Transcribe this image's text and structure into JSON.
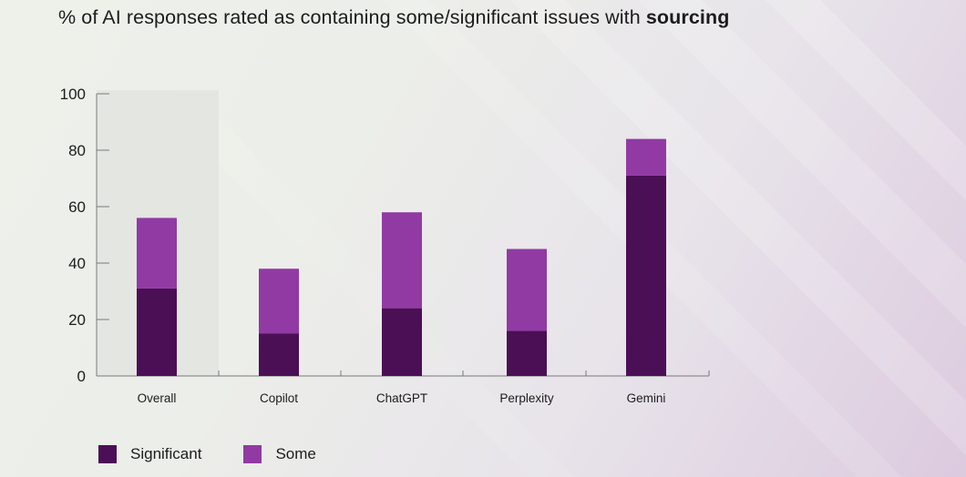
{
  "title": {
    "prefix": "% of AI responses rated as containing some/significant issues with ",
    "emphasis": "sourcing"
  },
  "colors": {
    "significant": "#4b0f55",
    "some": "#913aa4",
    "highlight": "#e4e6e2",
    "axis": "#7a7a7a"
  },
  "chart_data": {
    "type": "bar",
    "stacked": true,
    "title": "% of AI responses rated as containing some/significant issues with sourcing",
    "xlabel": "",
    "ylabel": "",
    "ylim": [
      0,
      100
    ],
    "yticks": [
      0,
      20,
      40,
      60,
      80,
      100
    ],
    "categories": [
      "Overall",
      "Copilot",
      "ChatGPT",
      "Perplexity",
      "Gemini"
    ],
    "highlighted_category": "Overall",
    "series": [
      {
        "name": "Significant",
        "values": [
          31,
          15,
          24,
          16,
          71
        ]
      },
      {
        "name": "Some",
        "values": [
          25,
          23,
          34,
          29,
          13
        ]
      }
    ],
    "legend_position": "bottom-left"
  },
  "legend": [
    {
      "label": "Significant",
      "color_key": "significant"
    },
    {
      "label": "Some",
      "color_key": "some"
    }
  ]
}
